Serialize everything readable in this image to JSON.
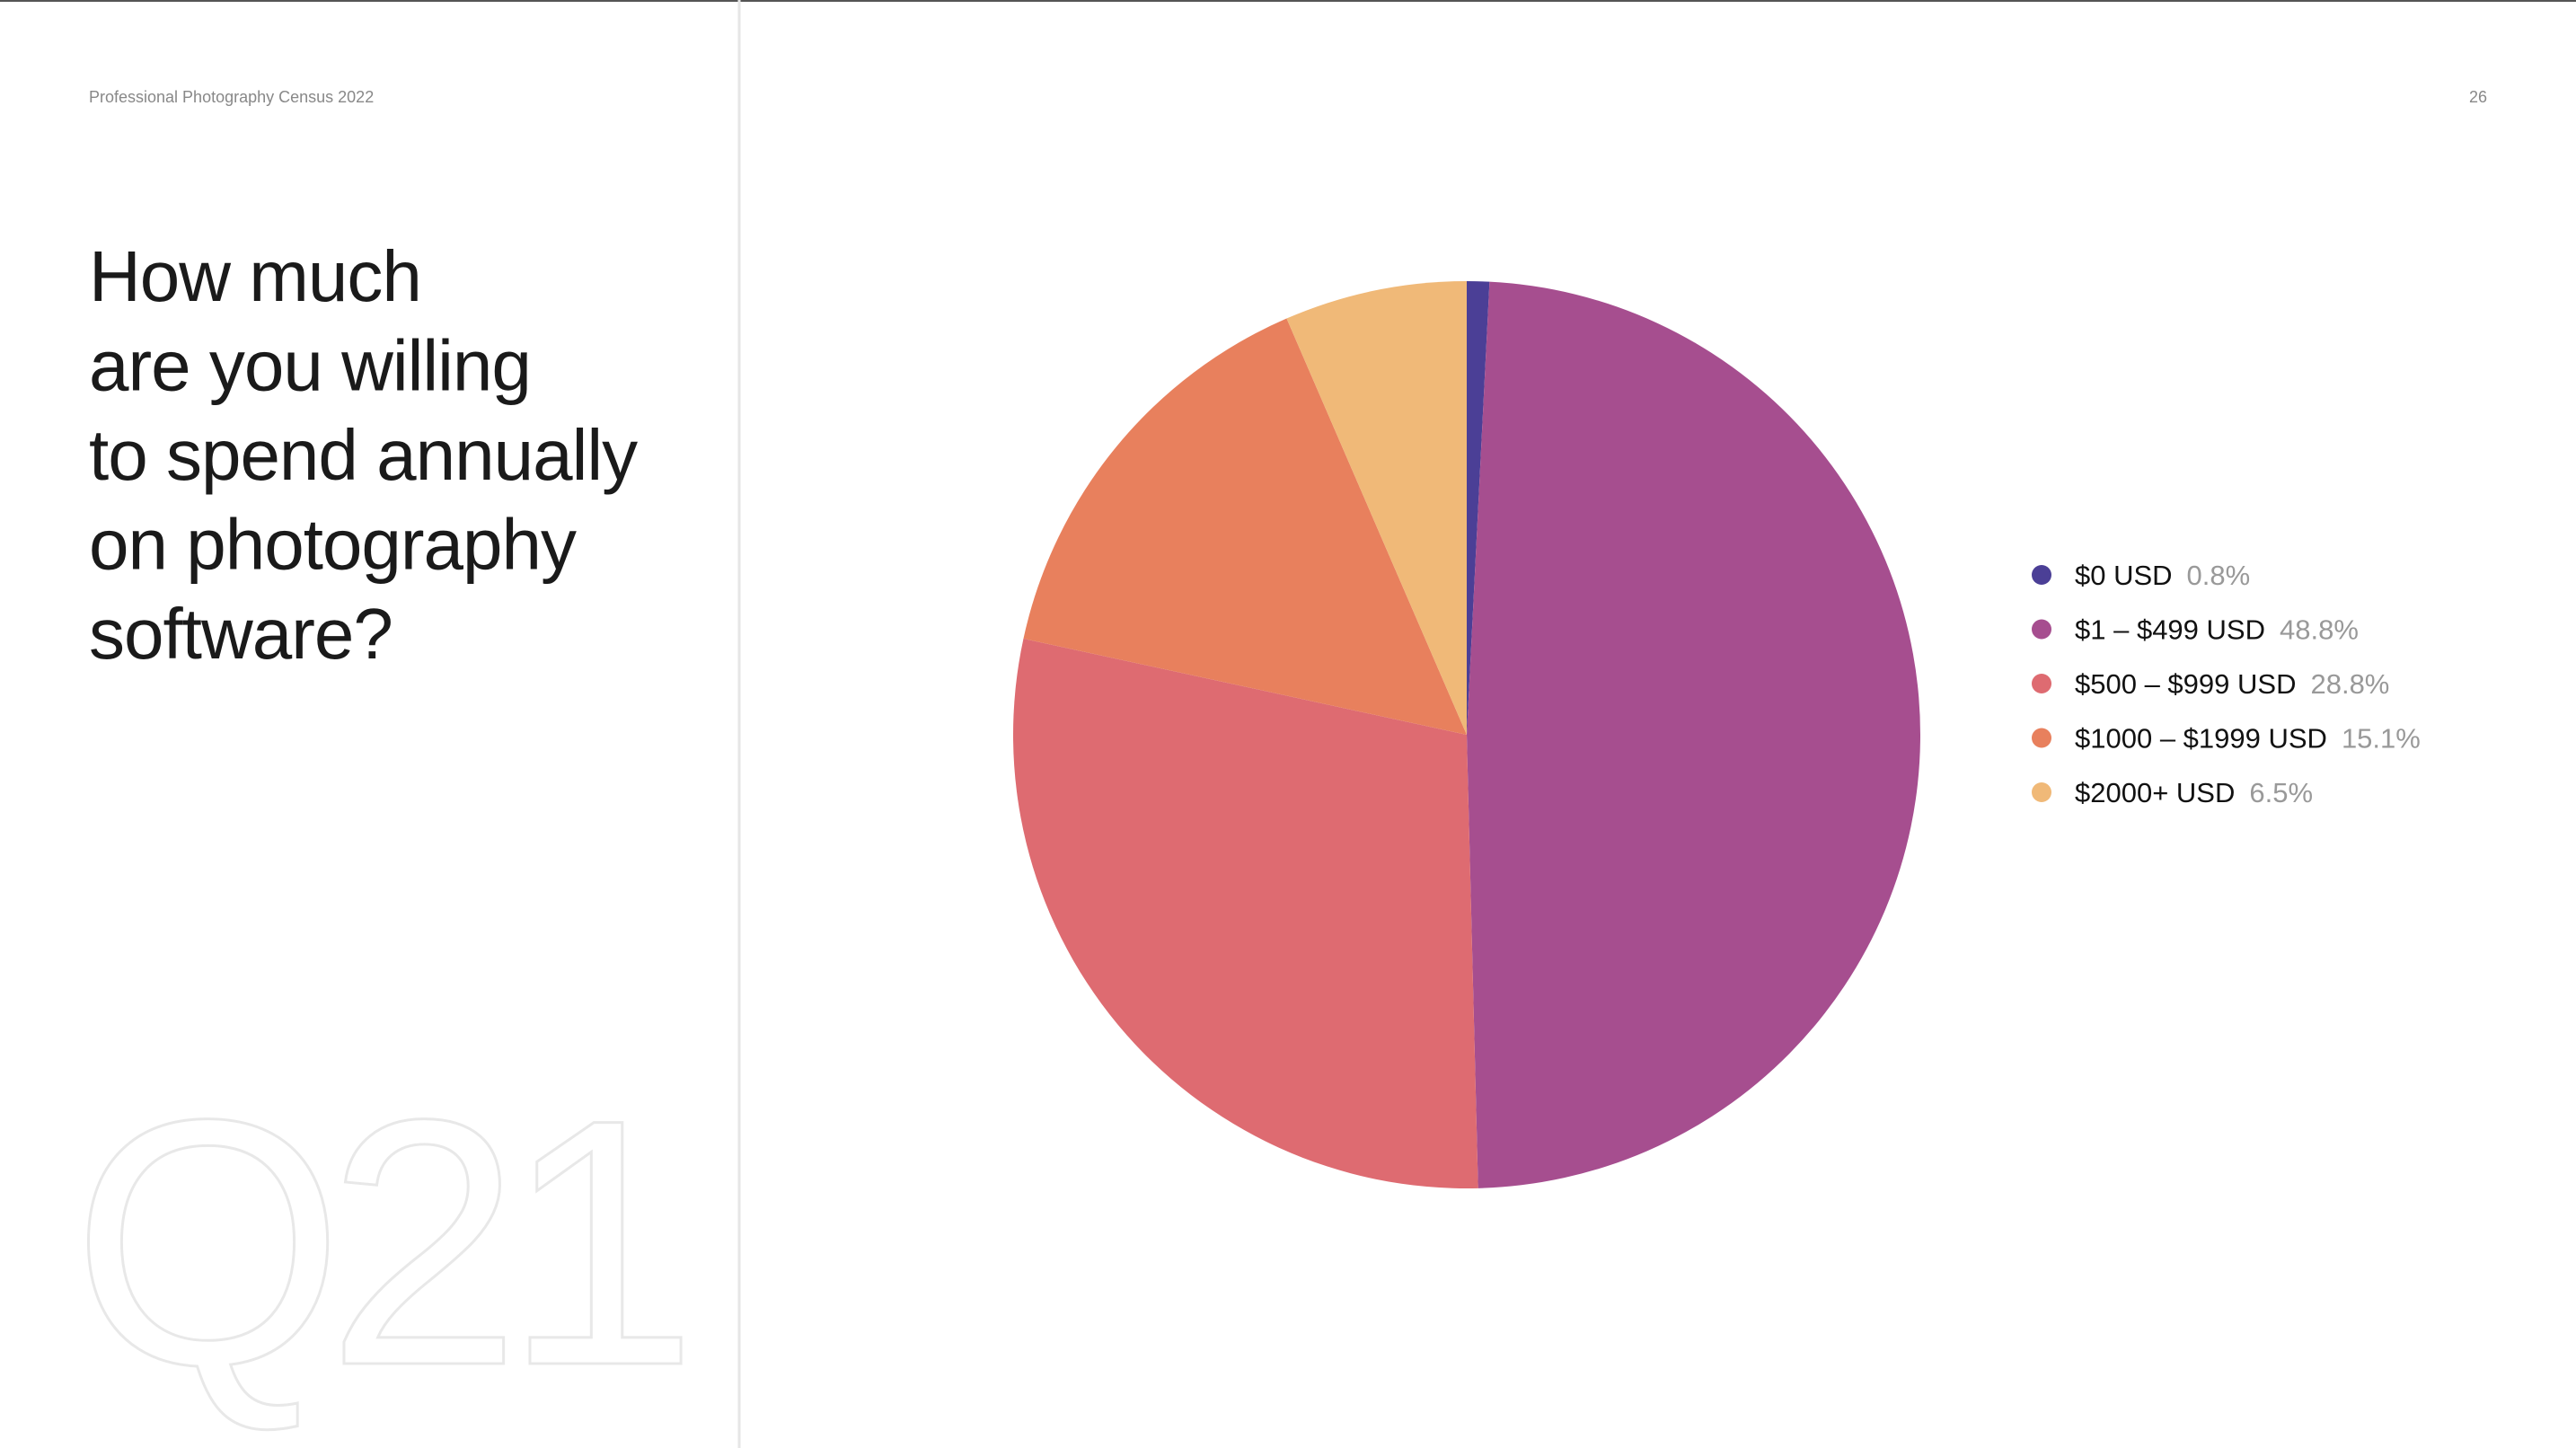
{
  "header": {
    "title": "Professional Photography Census 2022",
    "page": "26"
  },
  "question": {
    "lines": [
      "How much",
      "are you willing",
      "to spend annually",
      "on photography",
      "software?"
    ],
    "number": "Q21"
  },
  "chart_data": {
    "type": "pie",
    "categories": [
      "$0 USD",
      "$1 – $499 USD",
      "$500 – $999 USD",
      "$1000 – $1999 USD",
      "$2000+ USD"
    ],
    "values": [
      0.8,
      48.8,
      28.8,
      15.1,
      6.5
    ],
    "value_labels": [
      "0.8%",
      "48.8%",
      "28.8%",
      "15.1%",
      "6.5%"
    ],
    "colors": [
      "#4b3f96",
      "#a64e8f",
      "#de6b71",
      "#e8805d",
      "#f0b978"
    ],
    "legend": "right"
  }
}
